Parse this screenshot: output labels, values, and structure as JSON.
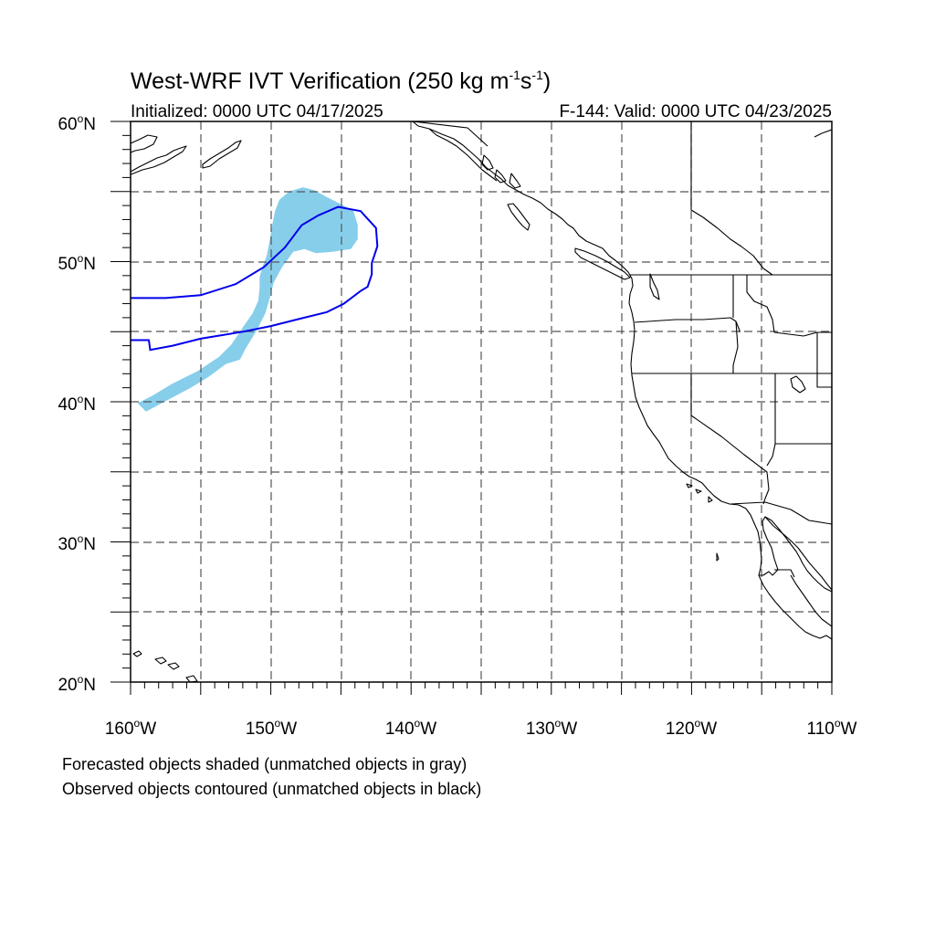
{
  "title": {
    "main": "West-WRF IVT Verification (250 kg m",
    "exp1": "-1",
    "mid": "s",
    "exp2": "-1",
    "close": ")"
  },
  "subtitle": {
    "left": "Initialized: 0000 UTC 04/17/2025",
    "right": "F-144: Valid: 0000 UTC 04/23/2025"
  },
  "map": {
    "lon_range": [
      -160,
      -110
    ],
    "lat_range": [
      20,
      60
    ],
    "lon_labels": [
      {
        "lon": -160,
        "num": "160",
        "deg": "o",
        "dir": "W"
      },
      {
        "lon": -150,
        "num": "150",
        "deg": "o",
        "dir": "W"
      },
      {
        "lon": -140,
        "num": "140",
        "deg": "o",
        "dir": "W"
      },
      {
        "lon": -130,
        "num": "130",
        "deg": "o",
        "dir": "W"
      },
      {
        "lon": -120,
        "num": "120",
        "deg": "o",
        "dir": "W"
      },
      {
        "lon": -110,
        "num": "110",
        "deg": "o",
        "dir": "W"
      }
    ],
    "lat_labels": [
      {
        "lat": 60,
        "num": "60",
        "deg": "o",
        "dir": "N"
      },
      {
        "lat": 50,
        "num": "50",
        "deg": "o",
        "dir": "N"
      },
      {
        "lat": 40,
        "num": "40",
        "deg": "o",
        "dir": "N"
      },
      {
        "lat": 30,
        "num": "30",
        "deg": "o",
        "dir": "N"
      },
      {
        "lat": 20,
        "num": "20",
        "deg": "o",
        "dir": "N"
      }
    ],
    "gridlines": "dashed every 5 degrees",
    "colors": {
      "forecast_fill": "#87ceeb",
      "observed_contour": "#0000ee",
      "coast": "#000000",
      "grid": "#555555"
    }
  },
  "objects": {
    "forecast_shaded": [
      {
        "label": "forecast-ivt-object",
        "matched": true,
        "outline": [
          [
            -159.5,
            39.9
          ],
          [
            -158.5,
            40.4
          ],
          [
            -157,
            41.3
          ],
          [
            -155.2,
            42.2
          ],
          [
            -153.7,
            43.2
          ],
          [
            -152.8,
            44.1
          ],
          [
            -152,
            45.3
          ],
          [
            -151.3,
            46.3
          ],
          [
            -150.9,
            47.2
          ],
          [
            -150.8,
            48.1
          ],
          [
            -150.8,
            48.9
          ],
          [
            -150.6,
            49.6
          ],
          [
            -150.3,
            50.4
          ],
          [
            -150.1,
            51.4
          ],
          [
            -149.9,
            52.6
          ],
          [
            -149.7,
            53.6
          ],
          [
            -149.4,
            54.4
          ],
          [
            -148.7,
            55.0
          ],
          [
            -147.7,
            55.3
          ],
          [
            -146.9,
            55.1
          ],
          [
            -146.0,
            54.6
          ],
          [
            -145.0,
            54.1
          ],
          [
            -144.1,
            53.6
          ],
          [
            -143.8,
            52.6
          ],
          [
            -143.8,
            51.6
          ],
          [
            -144.3,
            50.9
          ],
          [
            -145.6,
            50.7
          ],
          [
            -146.8,
            50.6
          ],
          [
            -147.6,
            50.9
          ],
          [
            -148.4,
            50.7
          ],
          [
            -149.2,
            49.6
          ],
          [
            -149.8,
            48.5
          ],
          [
            -150.1,
            47.3
          ],
          [
            -150.4,
            46.3
          ],
          [
            -151.0,
            45.1
          ],
          [
            -151.8,
            43.8
          ],
          [
            -152.2,
            43.0
          ],
          [
            -153.2,
            42.7
          ],
          [
            -154.4,
            41.8
          ],
          [
            -155.7,
            41.0
          ],
          [
            -157.4,
            40.1
          ],
          [
            -158.9,
            39.3
          ],
          [
            -159.5,
            39.9
          ]
        ]
      }
    ],
    "observed_contoured": [
      {
        "label": "observed-ivt-object",
        "matched": true,
        "outline": [
          [
            -160,
            47.4
          ],
          [
            -157.5,
            47.4
          ],
          [
            -155,
            47.6
          ],
          [
            -152.5,
            48.4
          ],
          [
            -150.5,
            49.6
          ],
          [
            -149.0,
            51.0
          ],
          [
            -147.8,
            52.6
          ],
          [
            -146.6,
            53.3
          ],
          [
            -145.2,
            53.9
          ],
          [
            -143.6,
            53.6
          ],
          [
            -142.5,
            52.4
          ],
          [
            -142.4,
            51.1
          ],
          [
            -142.8,
            49.9
          ],
          [
            -142.8,
            49.1
          ],
          [
            -143.1,
            48.2
          ],
          [
            -143.6,
            47.9
          ],
          [
            -144.8,
            47.0
          ],
          [
            -146.0,
            46.4
          ],
          [
            -148.0,
            45.9
          ],
          [
            -150.0,
            45.4
          ],
          [
            -152.0,
            45.0
          ],
          [
            -155.0,
            44.5
          ],
          [
            -157.0,
            44.0
          ],
          [
            -158.6,
            43.7
          ],
          [
            -158.7,
            44.4
          ],
          [
            -160,
            44.4
          ]
        ]
      }
    ]
  },
  "footer": {
    "line1": "Forecasted objects shaded (unmatched objects in gray)",
    "line2": "Observed objects contoured (unmatched objects in black)"
  }
}
